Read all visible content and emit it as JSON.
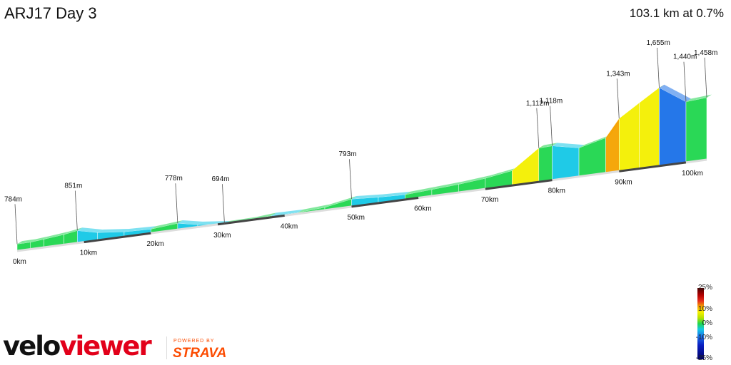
{
  "header": {
    "title": "ARJ17 Day 3",
    "summary": "103.1 km at 0.7%"
  },
  "legend": {
    "labels": [
      "25%",
      "10%",
      "0%",
      "-10%",
      "-25%"
    ]
  },
  "branding": {
    "logo_part1": "velo",
    "logo_part2": "viewer",
    "powered": "POWERED BY",
    "strava": "STRAVA"
  },
  "chart_data": {
    "type": "area",
    "title": "ARJ17 Day 3",
    "total_distance_km": 103.1,
    "avg_gradient_pct": 0.7,
    "x_ticks": [
      "0km",
      "10km",
      "20km",
      "30km",
      "40km",
      "50km",
      "60km",
      "70km",
      "80km",
      "90km",
      "100km"
    ],
    "gradient_scale_pct": [
      -25,
      25
    ],
    "elevation_profile": [
      {
        "km": 0,
        "m": 784
      },
      {
        "km": 2,
        "m": 785
      },
      {
        "km": 4,
        "m": 800
      },
      {
        "km": 7,
        "m": 825
      },
      {
        "km": 9,
        "m": 851
      },
      {
        "km": 12,
        "m": 795
      },
      {
        "km": 16,
        "m": 760
      },
      {
        "km": 20,
        "m": 750
      },
      {
        "km": 24,
        "m": 778
      },
      {
        "km": 27,
        "m": 730
      },
      {
        "km": 31,
        "m": 694
      },
      {
        "km": 35,
        "m": 700
      },
      {
        "km": 38,
        "m": 720
      },
      {
        "km": 42,
        "m": 715
      },
      {
        "km": 46,
        "m": 735
      },
      {
        "km": 50,
        "m": 793
      },
      {
        "km": 54,
        "m": 772
      },
      {
        "km": 58,
        "m": 760
      },
      {
        "km": 62,
        "m": 780
      },
      {
        "km": 66,
        "m": 800
      },
      {
        "km": 70,
        "m": 830
      },
      {
        "km": 74,
        "m": 880
      },
      {
        "km": 78,
        "m": 1112
      },
      {
        "km": 80,
        "m": 1118
      },
      {
        "km": 84,
        "m": 1050
      },
      {
        "km": 88,
        "m": 1130
      },
      {
        "km": 90,
        "m": 1343
      },
      {
        "km": 93,
        "m": 1500
      },
      {
        "km": 96,
        "m": 1655
      },
      {
        "km": 100,
        "m": 1440
      },
      {
        "km": 103.1,
        "m": 1458
      }
    ],
    "annotations": [
      {
        "km": 0,
        "label": "784m"
      },
      {
        "km": 9,
        "label": "851m"
      },
      {
        "km": 24,
        "label": "778m"
      },
      {
        "km": 31,
        "label": "694m"
      },
      {
        "km": 50,
        "label": "793m"
      },
      {
        "km": 78,
        "label": "1,112m"
      },
      {
        "km": 80,
        "label": "1,118m"
      },
      {
        "km": 90,
        "label": "1,343m"
      },
      {
        "km": 96,
        "label": "1,655m"
      },
      {
        "km": 100,
        "label": "1,440m"
      },
      {
        "km": 103.1,
        "label": "1,458m"
      }
    ]
  }
}
